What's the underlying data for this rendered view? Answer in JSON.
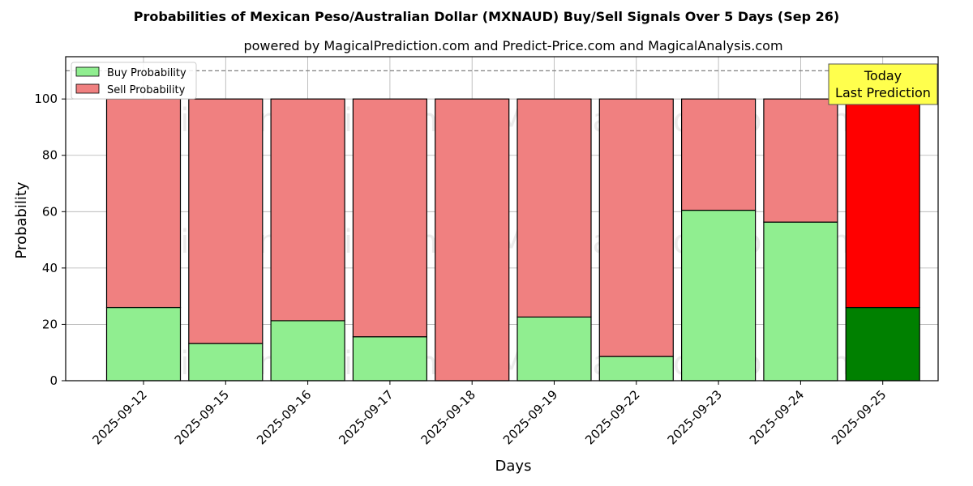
{
  "chart_data": {
    "type": "bar",
    "stacked": true,
    "title": "Probabilities of Mexican Peso/Australian Dollar (MXNAUD) Buy/Sell Signals Over 5 Days (Sep 26)",
    "subtitle": "powered by MagicalPrediction.com and Predict-Price.com and MagicalAnalysis.com",
    "xlabel": "Days",
    "ylabel": "Probability",
    "ylim": [
      0,
      115
    ],
    "yticks": [
      0,
      20,
      40,
      60,
      80,
      100
    ],
    "reference_line": 110,
    "grid": true,
    "legend_position": "top-left",
    "categories": [
      "2025-09-12",
      "2025-09-15",
      "2025-09-16",
      "2025-09-17",
      "2025-09-18",
      "2025-09-19",
      "2025-09-22",
      "2025-09-23",
      "2025-09-24",
      "2025-09-25"
    ],
    "series": [
      {
        "name": "Buy Probability",
        "color": "#90ee90",
        "highlight_color": "#008000",
        "values": [
          26,
          13.2,
          21.3,
          15.6,
          0,
          22.6,
          8.6,
          60.5,
          56.3,
          26
        ]
      },
      {
        "name": "Sell Probability",
        "color": "#f08080",
        "highlight_color": "#ff0000",
        "values": [
          74,
          86.8,
          78.7,
          84.4,
          100,
          77.4,
          91.4,
          39.5,
          43.7,
          74
        ]
      }
    ],
    "highlight_index": 9,
    "annotation": {
      "line1": "Today",
      "line2": "Last Prediction",
      "color": "#ffff4d"
    },
    "watermarks": [
      "MagicalAnalysis.com",
      "MagicalPrediction.com"
    ]
  }
}
